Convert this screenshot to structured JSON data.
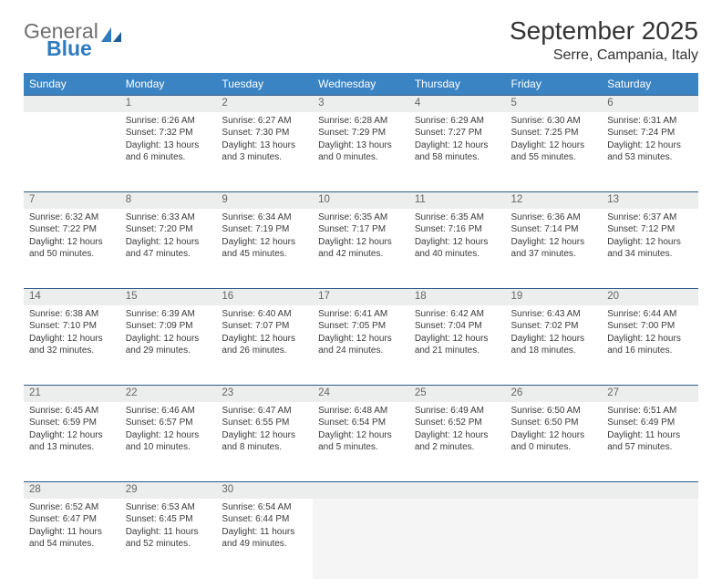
{
  "logo": {
    "general": "General",
    "blue": "Blue"
  },
  "title": "September 2025",
  "location": "Serre, Campania, Italy",
  "weekdays": [
    "Sunday",
    "Monday",
    "Tuesday",
    "Wednesday",
    "Thursday",
    "Friday",
    "Saturday"
  ],
  "colors": {
    "header_bg": "#3b84c4",
    "rule": "#2d5c87",
    "daynum_bg": "#eceded",
    "logo_blue": "#2f7bbf",
    "logo_gray": "#6f6f6f"
  },
  "rows": [
    {
      "nums": [
        "",
        "1",
        "2",
        "3",
        "4",
        "5",
        "6"
      ],
      "cells": [
        null,
        {
          "sr": "Sunrise: 6:26 AM",
          "ss": "Sunset: 7:32 PM",
          "d1": "Daylight: 13 hours",
          "d2": "and 6 minutes."
        },
        {
          "sr": "Sunrise: 6:27 AM",
          "ss": "Sunset: 7:30 PM",
          "d1": "Daylight: 13 hours",
          "d2": "and 3 minutes."
        },
        {
          "sr": "Sunrise: 6:28 AM",
          "ss": "Sunset: 7:29 PM",
          "d1": "Daylight: 13 hours",
          "d2": "and 0 minutes."
        },
        {
          "sr": "Sunrise: 6:29 AM",
          "ss": "Sunset: 7:27 PM",
          "d1": "Daylight: 12 hours",
          "d2": "and 58 minutes."
        },
        {
          "sr": "Sunrise: 6:30 AM",
          "ss": "Sunset: 7:25 PM",
          "d1": "Daylight: 12 hours",
          "d2": "and 55 minutes."
        },
        {
          "sr": "Sunrise: 6:31 AM",
          "ss": "Sunset: 7:24 PM",
          "d1": "Daylight: 12 hours",
          "d2": "and 53 minutes."
        }
      ]
    },
    {
      "nums": [
        "7",
        "8",
        "9",
        "10",
        "11",
        "12",
        "13"
      ],
      "cells": [
        {
          "sr": "Sunrise: 6:32 AM",
          "ss": "Sunset: 7:22 PM",
          "d1": "Daylight: 12 hours",
          "d2": "and 50 minutes."
        },
        {
          "sr": "Sunrise: 6:33 AM",
          "ss": "Sunset: 7:20 PM",
          "d1": "Daylight: 12 hours",
          "d2": "and 47 minutes."
        },
        {
          "sr": "Sunrise: 6:34 AM",
          "ss": "Sunset: 7:19 PM",
          "d1": "Daylight: 12 hours",
          "d2": "and 45 minutes."
        },
        {
          "sr": "Sunrise: 6:35 AM",
          "ss": "Sunset: 7:17 PM",
          "d1": "Daylight: 12 hours",
          "d2": "and 42 minutes."
        },
        {
          "sr": "Sunrise: 6:35 AM",
          "ss": "Sunset: 7:16 PM",
          "d1": "Daylight: 12 hours",
          "d2": "and 40 minutes."
        },
        {
          "sr": "Sunrise: 6:36 AM",
          "ss": "Sunset: 7:14 PM",
          "d1": "Daylight: 12 hours",
          "d2": "and 37 minutes."
        },
        {
          "sr": "Sunrise: 6:37 AM",
          "ss": "Sunset: 7:12 PM",
          "d1": "Daylight: 12 hours",
          "d2": "and 34 minutes."
        }
      ]
    },
    {
      "nums": [
        "14",
        "15",
        "16",
        "17",
        "18",
        "19",
        "20"
      ],
      "cells": [
        {
          "sr": "Sunrise: 6:38 AM",
          "ss": "Sunset: 7:10 PM",
          "d1": "Daylight: 12 hours",
          "d2": "and 32 minutes."
        },
        {
          "sr": "Sunrise: 6:39 AM",
          "ss": "Sunset: 7:09 PM",
          "d1": "Daylight: 12 hours",
          "d2": "and 29 minutes."
        },
        {
          "sr": "Sunrise: 6:40 AM",
          "ss": "Sunset: 7:07 PM",
          "d1": "Daylight: 12 hours",
          "d2": "and 26 minutes."
        },
        {
          "sr": "Sunrise: 6:41 AM",
          "ss": "Sunset: 7:05 PM",
          "d1": "Daylight: 12 hours",
          "d2": "and 24 minutes."
        },
        {
          "sr": "Sunrise: 6:42 AM",
          "ss": "Sunset: 7:04 PM",
          "d1": "Daylight: 12 hours",
          "d2": "and 21 minutes."
        },
        {
          "sr": "Sunrise: 6:43 AM",
          "ss": "Sunset: 7:02 PM",
          "d1": "Daylight: 12 hours",
          "d2": "and 18 minutes."
        },
        {
          "sr": "Sunrise: 6:44 AM",
          "ss": "Sunset: 7:00 PM",
          "d1": "Daylight: 12 hours",
          "d2": "and 16 minutes."
        }
      ]
    },
    {
      "nums": [
        "21",
        "22",
        "23",
        "24",
        "25",
        "26",
        "27"
      ],
      "cells": [
        {
          "sr": "Sunrise: 6:45 AM",
          "ss": "Sunset: 6:59 PM",
          "d1": "Daylight: 12 hours",
          "d2": "and 13 minutes."
        },
        {
          "sr": "Sunrise: 6:46 AM",
          "ss": "Sunset: 6:57 PM",
          "d1": "Daylight: 12 hours",
          "d2": "and 10 minutes."
        },
        {
          "sr": "Sunrise: 6:47 AM",
          "ss": "Sunset: 6:55 PM",
          "d1": "Daylight: 12 hours",
          "d2": "and 8 minutes."
        },
        {
          "sr": "Sunrise: 6:48 AM",
          "ss": "Sunset: 6:54 PM",
          "d1": "Daylight: 12 hours",
          "d2": "and 5 minutes."
        },
        {
          "sr": "Sunrise: 6:49 AM",
          "ss": "Sunset: 6:52 PM",
          "d1": "Daylight: 12 hours",
          "d2": "and 2 minutes."
        },
        {
          "sr": "Sunrise: 6:50 AM",
          "ss": "Sunset: 6:50 PM",
          "d1": "Daylight: 12 hours",
          "d2": "and 0 minutes."
        },
        {
          "sr": "Sunrise: 6:51 AM",
          "ss": "Sunset: 6:49 PM",
          "d1": "Daylight: 11 hours",
          "d2": "and 57 minutes."
        }
      ]
    },
    {
      "nums": [
        "28",
        "29",
        "30",
        "",
        "",
        "",
        ""
      ],
      "cells": [
        {
          "sr": "Sunrise: 6:52 AM",
          "ss": "Sunset: 6:47 PM",
          "d1": "Daylight: 11 hours",
          "d2": "and 54 minutes."
        },
        {
          "sr": "Sunrise: 6:53 AM",
          "ss": "Sunset: 6:45 PM",
          "d1": "Daylight: 11 hours",
          "d2": "and 52 minutes."
        },
        {
          "sr": "Sunrise: 6:54 AM",
          "ss": "Sunset: 6:44 PM",
          "d1": "Daylight: 11 hours",
          "d2": "and 49 minutes."
        },
        null,
        null,
        null,
        null
      ],
      "trailing_from": 3
    }
  ]
}
